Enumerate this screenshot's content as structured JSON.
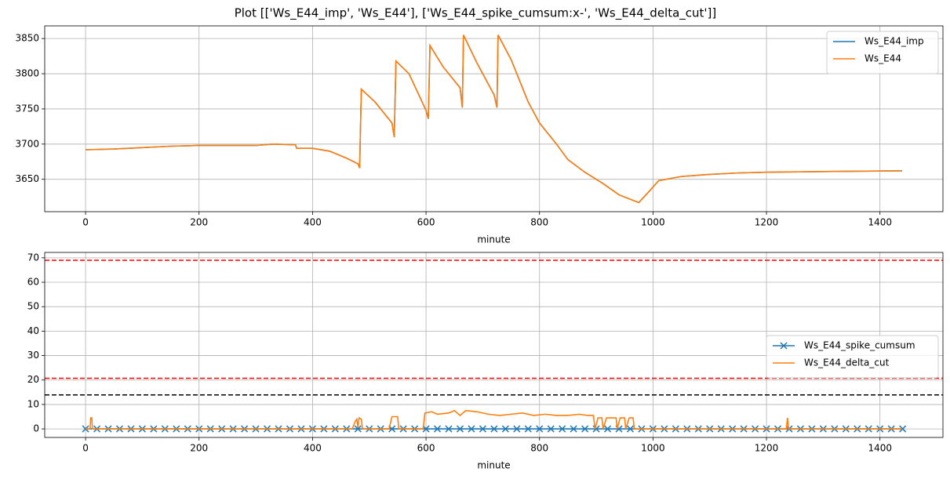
{
  "title": "Plot [['Ws_E44_imp', 'Ws_E44'], ['Ws_E44_spike_cumsum:x-', 'Ws_E44_delta_cut']]",
  "chart_data": [
    {
      "type": "line",
      "xlabel": "minute",
      "grid": true,
      "legend": "upper right",
      "xlim": [
        -72,
        1511
      ],
      "xticks": [
        0,
        200,
        400,
        600,
        800,
        1000,
        1200,
        1400
      ],
      "ylim": [
        3604,
        3868
      ],
      "yticks": [
        3650,
        3700,
        3750,
        3800,
        3850
      ],
      "x": [
        0,
        50,
        100,
        150,
        200,
        250,
        300,
        330,
        370,
        372,
        400,
        430,
        460,
        480,
        483,
        486,
        510,
        540,
        544,
        547,
        570,
        600,
        604,
        607,
        630,
        660,
        664,
        666,
        690,
        720,
        725,
        727,
        750,
        780,
        800,
        830,
        850,
        880,
        910,
        940,
        965,
        975,
        990,
        1010,
        1050,
        1100,
        1150,
        1200,
        1300,
        1439
      ],
      "series": [
        {
          "name": "Ws_E44_imp",
          "color": "#1f77b4",
          "values": [
            3692,
            3693,
            3695,
            3697,
            3698,
            3698,
            3698,
            3700,
            3699,
            3694,
            3694,
            3690,
            3680,
            3672,
            3666,
            3778,
            3760,
            3730,
            3710,
            3818,
            3800,
            3748,
            3736,
            3840,
            3810,
            3780,
            3752,
            3855,
            3815,
            3770,
            3752,
            3855,
            3820,
            3760,
            3730,
            3700,
            3678,
            3660,
            3645,
            3628,
            3620,
            3617,
            3630,
            3648,
            3654,
            3657,
            3659,
            3660,
            3661,
            3662
          ]
        },
        {
          "name": "Ws_E44",
          "color": "#ff7f0e",
          "values": [
            3692,
            3693,
            3695,
            3697,
            3698,
            3698,
            3698,
            3700,
            3699,
            3694,
            3694,
            3690,
            3680,
            3672,
            3666,
            3778,
            3760,
            3730,
            3710,
            3818,
            3800,
            3748,
            3736,
            3840,
            3810,
            3780,
            3752,
            3855,
            3815,
            3770,
            3752,
            3855,
            3820,
            3760,
            3730,
            3700,
            3678,
            3660,
            3645,
            3628,
            3620,
            3617,
            3630,
            3648,
            3654,
            3657,
            3659,
            3660,
            3661,
            3662
          ]
        }
      ]
    },
    {
      "type": "line",
      "xlabel": "minute",
      "grid": true,
      "legend": "center right",
      "xlim": [
        -72,
        1511
      ],
      "xticks": [
        0,
        200,
        400,
        600,
        800,
        1000,
        1200,
        1400
      ],
      "ylim": [
        -3.5,
        72.2
      ],
      "yticks": [
        0,
        10,
        20,
        30,
        40,
        50,
        60,
        70
      ],
      "hlines": [
        {
          "value": 69,
          "color": "red"
        },
        {
          "value": 20.7,
          "color": "red"
        },
        {
          "value": 13.9,
          "color": "black"
        }
      ],
      "series": [
        {
          "name": "Ws_E44_spike_cumsum",
          "color": "#1f77b4",
          "marker": "x",
          "x": [
            0,
            20,
            40,
            60,
            80,
            100,
            120,
            140,
            160,
            180,
            200,
            220,
            240,
            260,
            280,
            300,
            320,
            340,
            360,
            380,
            400,
            420,
            440,
            460,
            480,
            500,
            520,
            540,
            560,
            580,
            600,
            620,
            640,
            660,
            680,
            700,
            720,
            740,
            760,
            780,
            800,
            820,
            840,
            860,
            880,
            900,
            920,
            940,
            960,
            980,
            1000,
            1020,
            1040,
            1060,
            1080,
            1100,
            1120,
            1140,
            1160,
            1180,
            1200,
            1220,
            1240,
            1260,
            1280,
            1300,
            1320,
            1340,
            1360,
            1380,
            1400,
            1420,
            1440
          ],
          "values": [
            0,
            0,
            0,
            0,
            0,
            0,
            0,
            0,
            0,
            0,
            0,
            0,
            0,
            0,
            0,
            0,
            0,
            0,
            0,
            0,
            0,
            0,
            0,
            0,
            0,
            0,
            0,
            0,
            0,
            0,
            0,
            0,
            0,
            0,
            0,
            0,
            0,
            0,
            0,
            0,
            0,
            0,
            0,
            0,
            0,
            0,
            0,
            0,
            0,
            0,
            0,
            0,
            0,
            0,
            0,
            0,
            0,
            0,
            0,
            0,
            0,
            0,
            0,
            0,
            0,
            0,
            0,
            0,
            0,
            0,
            0,
            0,
            0
          ]
        },
        {
          "name": "Ws_E44_delta_cut",
          "color": "#ff7f0e",
          "x": [
            0,
            8,
            9,
            11,
            12,
            470,
            475,
            478,
            480,
            482,
            486,
            488,
            535,
            540,
            550,
            552,
            595,
            598,
            610,
            620,
            640,
            650,
            660,
            670,
            690,
            710,
            730,
            750,
            770,
            790,
            810,
            830,
            850,
            870,
            885,
            895,
            898,
            903,
            910,
            912,
            918,
            935,
            937,
            942,
            950,
            952,
            958,
            965,
            967,
            1235,
            1237,
            1239,
            1439
          ],
          "values": [
            0,
            0,
            4.5,
            4.5,
            0,
            0,
            3,
            4,
            0.5,
            4.5,
            4,
            0,
            0,
            5,
            5,
            0,
            0,
            6.5,
            7,
            6,
            6.5,
            7.5,
            5.5,
            7.5,
            7,
            6,
            5.5,
            6,
            6.5,
            5.5,
            6,
            5.5,
            5.5,
            6,
            5.5,
            5.5,
            0,
            4.5,
            4.5,
            0,
            4.5,
            4.5,
            0,
            4.5,
            4.5,
            0,
            4.5,
            4.5,
            0,
            0,
            4.5,
            0,
            0
          ]
        }
      ]
    }
  ]
}
